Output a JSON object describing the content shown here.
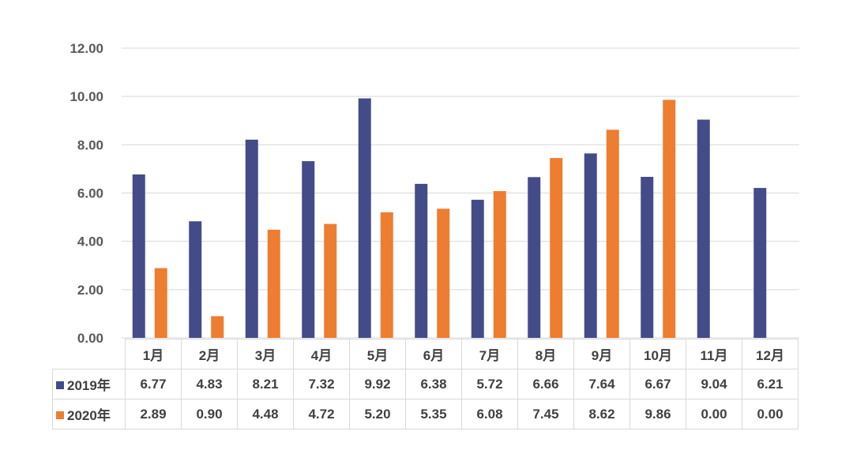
{
  "chart_data": {
    "type": "bar",
    "categories": [
      "1月",
      "2月",
      "3月",
      "4月",
      "5月",
      "6月",
      "7月",
      "8月",
      "9月",
      "10月",
      "11月",
      "12月"
    ],
    "series": [
      {
        "name": "2019年",
        "color": "#434c88",
        "values": [
          6.77,
          4.83,
          8.21,
          7.32,
          9.92,
          6.38,
          5.72,
          6.66,
          7.64,
          6.67,
          9.04,
          6.21
        ],
        "labels": [
          "6.77",
          "4.83",
          "8.21",
          "7.32",
          "9.92",
          "6.38",
          "5.72",
          "6.66",
          "7.64",
          "6.67",
          "9.04",
          "6.21"
        ]
      },
      {
        "name": "2020年",
        "color": "#ed7d31",
        "values": [
          2.89,
          0.9,
          4.48,
          4.72,
          5.2,
          5.35,
          6.08,
          7.45,
          8.62,
          9.86,
          0.0,
          0.0
        ],
        "labels": [
          "2.89",
          "0.90",
          "4.48",
          "4.72",
          "5.20",
          "5.35",
          "6.08",
          "7.45",
          "8.62",
          "9.86",
          "0.00",
          "0.00"
        ]
      }
    ],
    "yticks": [
      "0.00",
      "2.00",
      "4.00",
      "6.00",
      "8.00",
      "10.00",
      "12.00"
    ],
    "ylim": [
      0,
      12
    ],
    "grid": true,
    "legend": "data-table"
  }
}
